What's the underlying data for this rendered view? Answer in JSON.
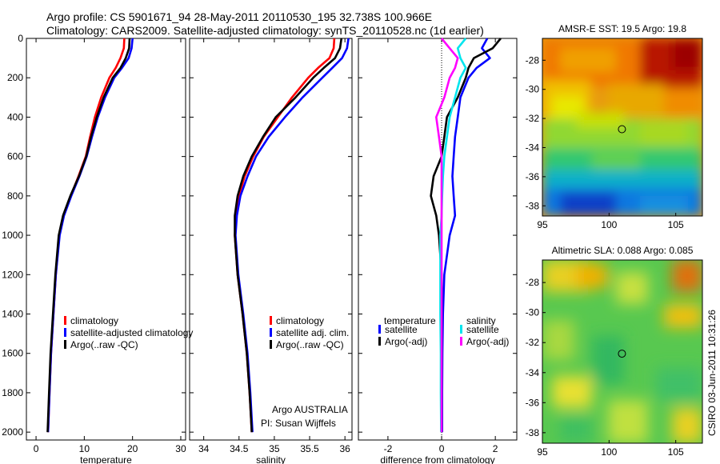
{
  "title": {
    "line1": "Argo profile: CS 5901671_94 28-May-2011 20110530_195 32.738S 100.966E",
    "line2": "Climatology: CARS2009. Satellite-adjusted climatology: synTS_20110528.nc (1d earlier)"
  },
  "side_text": "CSIRO 03-Jun-2011 10:31:26",
  "colors": {
    "climatology": "#ff0000",
    "satellite": "#0000ff",
    "argo": "#000000",
    "sat_sal": "#00e5ee",
    "argo_sal": "#ff00ff"
  },
  "chart_data": [
    {
      "type": "line",
      "id": "temperature",
      "xlabel": "temperature",
      "ylabel": "",
      "xlim": [
        -2,
        31
      ],
      "ylim": [
        2040,
        0
      ],
      "x_ticks": [
        0,
        10,
        20,
        30
      ],
      "x_tick_labels": [
        "0",
        "10",
        "20",
        "30"
      ],
      "y_ticks": [
        0,
        200,
        400,
        600,
        800,
        1000,
        1200,
        1400,
        1600,
        1800,
        2000
      ],
      "y_tick_labels": [
        "0",
        "200",
        "400",
        "600",
        "800",
        "1000",
        "1200",
        "1400",
        "1600",
        "1800",
        "2000"
      ],
      "legend": [
        "climatology",
        "satellite-adjusted climatology",
        "Argo(..raw -QC)"
      ],
      "series": [
        {
          "name": "climatology",
          "color": "#ff0000",
          "x": [
            18.3,
            18.2,
            17.5,
            16.5,
            15.2,
            13.5,
            12.2,
            11.2,
            10.3,
            8.8,
            7.2,
            5.7,
            4.8,
            4.1,
            3.6,
            3.1,
            2.8,
            2.5
          ],
          "y": [
            0,
            50,
            100,
            150,
            200,
            300,
            400,
            500,
            600,
            700,
            800,
            900,
            1000,
            1200,
            1400,
            1600,
            1800,
            2000
          ]
        },
        {
          "name": "satellite-adjusted climatology",
          "color": "#0000ff",
          "x": [
            20.0,
            19.8,
            19.2,
            17.8,
            16.2,
            14.3,
            12.8,
            11.6,
            10.5,
            9.0,
            7.3,
            5.8,
            4.9,
            4.1,
            3.6,
            3.1,
            2.8,
            2.5
          ],
          "y": [
            0,
            50,
            100,
            150,
            200,
            300,
            400,
            500,
            600,
            700,
            800,
            900,
            1000,
            1200,
            1400,
            1600,
            1800,
            2000
          ]
        },
        {
          "name": "Argo(..raw -QC)",
          "color": "#000000",
          "x": [
            19.4,
            19.3,
            18.6,
            17.5,
            15.9,
            14.0,
            12.6,
            11.4,
            10.4,
            8.9,
            7.1,
            5.6,
            4.7,
            4.0,
            3.5,
            3.0,
            2.7,
            2.4
          ],
          "y": [
            0,
            50,
            100,
            150,
            200,
            300,
            400,
            500,
            600,
            700,
            800,
            900,
            1000,
            1200,
            1400,
            1600,
            1800,
            2000
          ]
        }
      ]
    },
    {
      "type": "line",
      "id": "salinity",
      "xlabel": "salinity",
      "xlim": [
        33.8,
        36.1
      ],
      "ylim": [
        2040,
        0
      ],
      "x_ticks": [
        34,
        34.5,
        35,
        35.5,
        36
      ],
      "x_tick_labels": [
        "34",
        "34.5",
        "35",
        "35.5",
        "36"
      ],
      "legend": [
        "climatology",
        "satellite adj. clim.",
        "Argo(..raw -QC)"
      ],
      "annotations": [
        "Argo AUSTRALIA",
        "PI: Susan Wijffels"
      ],
      "series": [
        {
          "name": "climatology",
          "color": "#ff0000",
          "x": [
            35.85,
            35.84,
            35.78,
            35.62,
            35.48,
            35.25,
            35.05,
            34.85,
            34.7,
            34.58,
            34.5,
            34.46,
            34.44,
            34.48,
            34.55,
            34.61,
            34.65,
            34.68
          ],
          "y": [
            0,
            50,
            100,
            150,
            200,
            300,
            400,
            500,
            600,
            700,
            800,
            900,
            1000,
            1200,
            1400,
            1600,
            1800,
            2000
          ]
        },
        {
          "name": "satellite adj. clim.",
          "color": "#0000ff",
          "x": [
            36.05,
            36.03,
            35.96,
            35.82,
            35.68,
            35.4,
            35.15,
            34.92,
            34.74,
            34.62,
            34.52,
            34.47,
            34.45,
            34.49,
            34.56,
            34.62,
            34.66,
            34.69
          ],
          "y": [
            0,
            50,
            100,
            150,
            200,
            300,
            400,
            500,
            600,
            700,
            800,
            900,
            1000,
            1200,
            1400,
            1600,
            1800,
            2000
          ]
        },
        {
          "name": "Argo(..raw -QC)",
          "color": "#000000",
          "x": [
            35.95,
            35.93,
            35.86,
            35.7,
            35.55,
            35.3,
            35.02,
            34.84,
            34.68,
            34.56,
            34.48,
            34.44,
            34.44,
            34.48,
            34.55,
            34.61,
            34.65,
            34.68
          ],
          "y": [
            0,
            50,
            100,
            150,
            200,
            300,
            400,
            500,
            600,
            700,
            800,
            900,
            1000,
            1200,
            1400,
            1600,
            1800,
            2000
          ]
        }
      ]
    },
    {
      "type": "line",
      "id": "difference",
      "xlabel": "difference from climatology",
      "xlim": [
        -3.1,
        2.8
      ],
      "ylim": [
        2040,
        0
      ],
      "x_ticks": [
        -2,
        0,
        2
      ],
      "x_tick_labels": [
        "-2",
        "0",
        "2"
      ],
      "legend_headers": [
        "temperature",
        "salinity"
      ],
      "legend": [
        "satellite",
        "Argo(-adj)",
        "satellite",
        "Argo(-adj)"
      ],
      "series": [
        {
          "name": "temperature satellite",
          "color": "#0000ff",
          "x": [
            1.7,
            1.5,
            1.8,
            1.3,
            1.0,
            0.7,
            0.6,
            0.5,
            0.45,
            0.4,
            0.45,
            0.5,
            0.3,
            0.1,
            0.05,
            0.03,
            0.02,
            0.02
          ],
          "y": [
            0,
            50,
            100,
            150,
            200,
            300,
            400,
            500,
            600,
            700,
            800,
            900,
            1000,
            1200,
            1400,
            1600,
            1800,
            2000
          ]
        },
        {
          "name": "temperature Argo(-adj)",
          "color": "#000000",
          "x": [
            2.2,
            1.9,
            1.2,
            1.0,
            0.9,
            0.6,
            0.2,
            0.1,
            0.0,
            -0.3,
            -0.4,
            -0.2,
            -0.1,
            0.0,
            0.0,
            0.0,
            0.0,
            0.0
          ],
          "y": [
            0,
            50,
            100,
            150,
            200,
            300,
            400,
            500,
            600,
            700,
            800,
            900,
            1000,
            1200,
            1400,
            1600,
            1800,
            2000
          ]
        },
        {
          "name": "salinity satellite",
          "color": "#00e5ee",
          "x": [
            0.9,
            0.6,
            0.7,
            0.9,
            0.7,
            0.5,
            0.3,
            0.2,
            0.1,
            0.05,
            0.02,
            0.0,
            -0.05,
            -0.05,
            -0.05,
            -0.03,
            -0.03,
            -0.02
          ],
          "y": [
            0,
            50,
            100,
            150,
            200,
            300,
            400,
            500,
            600,
            700,
            800,
            900,
            1000,
            1200,
            1400,
            1600,
            1800,
            2000
          ]
        },
        {
          "name": "salinity Argo(-adj)",
          "color": "#ff00ff",
          "x": [
            0.0,
            0.3,
            0.6,
            0.5,
            0.3,
            0.1,
            -0.2,
            -0.1,
            0.0,
            0.0,
            0.0,
            0.0,
            0.0,
            0.0,
            0.0,
            0.0,
            0.0,
            0.0
          ],
          "y": [
            0,
            50,
            100,
            150,
            200,
            300,
            400,
            500,
            600,
            700,
            800,
            900,
            1000,
            1200,
            1400,
            1600,
            1800,
            2000
          ]
        }
      ]
    },
    {
      "type": "heatmap",
      "id": "sst_map",
      "title": "AMSR-E SST: 19.5  Argo: 19.8",
      "xlim": [
        95,
        107
      ],
      "ylim": [
        -38.7,
        -26.5
      ],
      "x_ticks": [
        95,
        100,
        105
      ],
      "y_ticks": [
        -28,
        -30,
        -32,
        -34,
        -36,
        -38
      ],
      "x_tick_labels": [
        "95",
        "100",
        "105"
      ],
      "y_tick_labels": [
        "-28",
        "-30",
        "-32",
        "-34",
        "-36",
        "-38"
      ],
      "float_position": [
        100.966,
        -32.738
      ]
    },
    {
      "type": "heatmap",
      "id": "sla_map",
      "title": "Altimetric SLA: 0.088  Argo: 0.085",
      "xlim": [
        95,
        107
      ],
      "ylim": [
        -38.7,
        -26.5
      ],
      "x_ticks": [
        95,
        100,
        105
      ],
      "y_ticks": [
        -28,
        -30,
        -32,
        -34,
        -36,
        -38
      ],
      "x_tick_labels": [
        "95",
        "100",
        "105"
      ],
      "y_tick_labels": [
        "-28",
        "-30",
        "-32",
        "-34",
        "-36",
        "-38"
      ],
      "float_position": [
        100.966,
        -32.738
      ]
    }
  ]
}
